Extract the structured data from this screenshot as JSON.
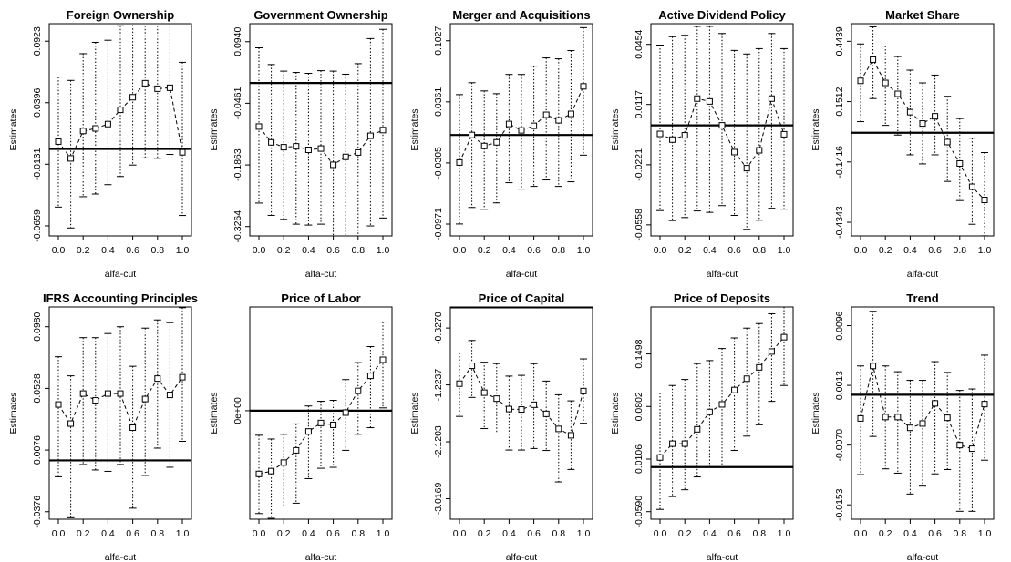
{
  "figure": {
    "xlabel": "alfa-cut",
    "ylabel": "Estimates",
    "colors": {
      "foreground": "#000000",
      "background": "#ffffff"
    }
  },
  "chart_data": [
    {
      "type": "line",
      "title": "Foreign Ownership",
      "xlabel": "alfa-cut",
      "ylabel": "Estimates",
      "xlim": [
        0,
        1
      ],
      "ylim": [
        -0.0745,
        0.1073
      ],
      "x_ticks": [
        "0.0",
        "0.2",
        "0.4",
        "0.6",
        "0.8",
        "1.0"
      ],
      "y_ticks": [
        "-0.0659",
        "-0.0131",
        "0.0396",
        "0.0923"
      ],
      "y_tick_values": [
        -0.0659,
        -0.0131,
        0.0396,
        0.0923
      ],
      "reference_line": 0.0,
      "x": [
        0,
        0.1,
        0.2,
        0.3,
        0.4,
        0.5,
        0.6,
        0.7,
        0.8,
        0.9,
        1.0
      ],
      "estimate": [
        0.0063,
        -0.0081,
        0.0154,
        0.0176,
        0.0213,
        0.0335,
        0.0443,
        0.0563,
        0.0516,
        0.0524,
        -0.0029
      ],
      "upper": [
        0.0616,
        0.0587,
        0.0816,
        0.0913,
        0.0931,
        0.1055,
        0.1088,
        0.111,
        0.111,
        0.1103,
        0.0742
      ],
      "lower": [
        -0.0498,
        -0.0677,
        -0.0409,
        -0.0386,
        -0.0306,
        -0.0236,
        -0.0138,
        -0.0077,
        -0.008,
        -0.0047,
        -0.057
      ]
    },
    {
      "type": "line",
      "title": "Government Ownership",
      "xlabel": "alfa-cut",
      "ylabel": "Estimates",
      "xlim": [
        0,
        1
      ],
      "ylim": [
        -0.3477,
        0.1349
      ],
      "x_ticks": [
        "0.0",
        "0.2",
        "0.4",
        "0.6",
        "0.8",
        "1.0"
      ],
      "y_ticks": [
        "-0.3264",
        "-0.1863",
        "-0.0461",
        "0.0940"
      ],
      "y_tick_values": [
        -0.3264,
        -0.1863,
        -0.0461,
        0.094
      ],
      "reference_line": 0.0,
      "x": [
        0,
        0.1,
        0.2,
        0.3,
        0.4,
        0.5,
        0.6,
        0.7,
        0.8,
        0.9,
        1.0
      ],
      "estimate": [
        -0.099,
        -0.135,
        -0.146,
        -0.144,
        -0.152,
        -0.149,
        -0.186,
        -0.168,
        -0.158,
        -0.12,
        -0.107
      ],
      "upper": [
        0.08,
        0.042,
        0.027,
        0.024,
        0.022,
        0.028,
        0.027,
        0.02,
        0.044,
        0.101,
        0.122
      ],
      "lower": [
        -0.273,
        -0.301,
        -0.31,
        -0.321,
        -0.323,
        -0.321,
        -0.361,
        -0.35,
        -0.348,
        -0.325,
        -0.307
      ]
    },
    {
      "type": "line",
      "title": "Merger and Acquisitions",
      "xlabel": "alfa-cut",
      "ylabel": "Estimates",
      "xlim": [
        0,
        1
      ],
      "ylim": [
        -0.11,
        0.1213
      ],
      "x_ticks": [
        "0.0",
        "0.2",
        "0.4",
        "0.6",
        "0.8",
        "1.0"
      ],
      "y_ticks": [
        "-0.0971",
        "-0.0305",
        "0.0361",
        "0.1027"
      ],
      "y_tick_values": [
        -0.0971,
        -0.0305,
        0.0361,
        0.1027
      ],
      "reference_line": 0.0,
      "x": [
        0,
        0.1,
        0.2,
        0.3,
        0.4,
        0.5,
        0.6,
        0.7,
        0.8,
        0.9,
        1.0
      ],
      "estimate": [
        -0.03,
        0.0,
        -0.012,
        -0.008,
        0.012,
        0.005,
        0.01,
        0.022,
        0.016,
        0.023,
        0.053
      ],
      "upper": [
        0.044,
        0.057,
        0.048,
        0.045,
        0.066,
        0.066,
        0.075,
        0.084,
        0.083,
        0.092,
        0.117
      ],
      "lower": [
        -0.097,
        -0.079,
        -0.081,
        -0.074,
        -0.052,
        -0.059,
        -0.056,
        -0.049,
        -0.056,
        -0.051,
        -0.022
      ]
    },
    {
      "type": "line",
      "title": "Active Dividend Policy",
      "xlabel": "alfa-cut",
      "ylabel": "Estimates",
      "xlim": [
        0,
        1
      ],
      "ylim": [
        -0.062,
        0.057
      ],
      "x_ticks": [
        "0.0",
        "0.2",
        "0.4",
        "0.6",
        "0.8",
        "1.0"
      ],
      "y_ticks": [
        "-0.0558",
        "-0.0221",
        "0.0117",
        "0.0454"
      ],
      "y_tick_values": [
        -0.0558,
        -0.0221,
        0.0117,
        0.0454
      ],
      "reference_line": 0.0,
      "x": [
        0,
        0.1,
        0.2,
        0.3,
        0.4,
        0.5,
        0.6,
        0.7,
        0.8,
        0.9,
        1.0
      ],
      "estimate": [
        -0.0048,
        -0.008,
        -0.0056,
        0.015,
        0.0134,
        0.0,
        -0.015,
        -0.024,
        -0.014,
        0.015,
        -0.005
      ],
      "upper": [
        0.045,
        0.0497,
        0.0505,
        0.0555,
        0.0555,
        0.0515,
        0.042,
        0.04,
        0.043,
        0.0515,
        0.043
      ],
      "lower": [
        -0.0478,
        -0.0534,
        -0.0517,
        -0.048,
        -0.0488,
        -0.045,
        -0.0505,
        -0.0583,
        -0.0532,
        -0.0465,
        -0.047
      ]
    },
    {
      "type": "line",
      "title": "Market Share",
      "xlabel": "alfa-cut",
      "ylabel": "Estimates",
      "xlim": [
        0,
        1
      ],
      "ylim": [
        -0.5005,
        0.5294
      ],
      "x_ticks": [
        "0.0",
        "0.2",
        "0.4",
        "0.6",
        "0.8",
        "1.0"
      ],
      "y_ticks": [
        "-0.4343",
        "-0.1416",
        "0.1512",
        "0.4439"
      ],
      "y_tick_values": [
        -0.4343,
        -0.1416,
        0.1512,
        0.4439
      ],
      "reference_line": 0.0,
      "x": [
        0,
        0.1,
        0.2,
        0.3,
        0.4,
        0.5,
        0.6,
        0.7,
        0.8,
        0.9,
        1.0
      ],
      "estimate": [
        0.252,
        0.355,
        0.242,
        0.189,
        0.1,
        0.045,
        0.08,
        -0.045,
        -0.149,
        -0.262,
        -0.326
      ],
      "upper": [
        0.431,
        0.514,
        0.421,
        0.37,
        0.304,
        0.242,
        0.28,
        0.177,
        0.069,
        -0.026,
        -0.096
      ],
      "lower": [
        0.054,
        0.166,
        0.036,
        -0.011,
        -0.107,
        -0.151,
        -0.107,
        -0.236,
        -0.329,
        -0.444,
        -0.5
      ]
    },
    {
      "type": "line",
      "title": "IFRS Accounting Principles",
      "xlabel": "alfa-cut",
      "ylabel": "Estimates",
      "xlim": [
        0,
        1
      ],
      "ylim": [
        -0.0431,
        0.1125
      ],
      "x_ticks": [
        "0.0",
        "0.2",
        "0.4",
        "0.6",
        "0.8",
        "1.0"
      ],
      "y_ticks": [
        "-0.0376",
        "0.0076",
        "0.0528",
        "0.0980"
      ],
      "y_tick_values": [
        -0.0376,
        0.0076,
        0.0528,
        0.098
      ],
      "reference_line": 0.0,
      "x": [
        0,
        0.1,
        0.2,
        0.3,
        0.4,
        0.5,
        0.6,
        0.7,
        0.8,
        0.9,
        1.0
      ],
      "estimate": [
        0.041,
        0.027,
        0.049,
        0.044,
        0.049,
        0.049,
        0.024,
        0.045,
        0.06,
        0.048,
        0.061
      ],
      "upper": [
        0.076,
        0.062,
        0.09,
        0.09,
        0.093,
        0.098,
        0.069,
        0.097,
        0.103,
        0.101,
        0.112
      ],
      "lower": [
        -0.012,
        -0.042,
        -0.003,
        -0.007,
        -0.008,
        -0.003,
        -0.035,
        -0.011,
        0.009,
        -0.005,
        0.014
      ]
    },
    {
      "type": "line",
      "title": "Price of Labor",
      "xlabel": "alfa-cut",
      "ylabel": "Estimates",
      "xlim": [
        0,
        1
      ],
      "ylim": [
        -1.15,
        1.1
      ],
      "x_ticks": [
        "0.0",
        "0.2",
        "0.4",
        "0.6",
        "0.8",
        "1.0"
      ],
      "y_ticks": [
        "0e+00"
      ],
      "y_tick_values": [
        0
      ],
      "reference_line": 0.0,
      "x": [
        0,
        0.1,
        0.2,
        0.3,
        0.4,
        0.5,
        0.6,
        0.7,
        0.8,
        0.9,
        1.0
      ],
      "estimate": [
        -0.67,
        -0.64,
        -0.55,
        -0.42,
        -0.22,
        -0.13,
        -0.15,
        -0.02,
        0.21,
        0.37,
        0.54
      ],
      "upper": [
        -0.26,
        -0.3,
        -0.25,
        -0.14,
        0.05,
        0.1,
        0.11,
        0.33,
        0.51,
        0.68,
        0.94
      ],
      "lower": [
        -1.09,
        -1.14,
        -1.01,
        -0.98,
        -0.72,
        -0.61,
        -0.6,
        -0.42,
        -0.25,
        -0.18,
        0.03
      ]
    },
    {
      "type": "line",
      "title": "Price of Capital",
      "xlabel": "alfa-cut",
      "ylabel": "Estimates",
      "xlim": [
        0,
        1
      ],
      "ylim": [
        -3.34,
        0.005
      ],
      "x_ticks": [
        "0.0",
        "0.2",
        "0.4",
        "0.6",
        "0.8",
        "1.0"
      ],
      "y_ticks": [
        "-3.0169",
        "-2.1203",
        "-1.2237",
        "-0.3270"
      ],
      "y_tick_values": [
        -3.0169,
        -2.1203,
        -1.2237,
        -0.327
      ],
      "reference_line": 0.0,
      "x": [
        0,
        0.1,
        0.2,
        0.3,
        0.4,
        0.5,
        0.6,
        0.7,
        0.8,
        0.9,
        1.0
      ],
      "estimate": [
        -1.204,
        -0.922,
        -1.346,
        -1.44,
        -1.604,
        -1.611,
        -1.536,
        -1.68,
        -1.917,
        -2.018,
        -1.321
      ],
      "upper": [
        -0.72,
        -0.523,
        -0.866,
        -0.888,
        -1.085,
        -1.073,
        -0.889,
        -1.163,
        -1.379,
        -1.475,
        -0.814
      ],
      "lower": [
        -1.72,
        -1.421,
        -1.912,
        -1.998,
        -2.25,
        -2.25,
        -2.226,
        -2.257,
        -2.752,
        -2.556,
        -1.828
      ]
    },
    {
      "type": "line",
      "title": "Price of Deposits",
      "xlabel": "alfa-cut",
      "ylabel": "Estimates",
      "xlim": [
        0,
        1
      ],
      "ylim": [
        -0.069,
        0.212
      ],
      "x_ticks": [
        "0.0",
        "0.2",
        "0.4",
        "0.6",
        "0.8",
        "1.0"
      ],
      "y_ticks": [
        "-0.0590",
        "0.0106",
        "0.0802",
        "0.1498"
      ],
      "y_tick_values": [
        -0.059,
        0.0106,
        0.0802,
        0.1498
      ],
      "reference_line": 0.0,
      "x": [
        0,
        0.1,
        0.2,
        0.3,
        0.4,
        0.5,
        0.6,
        0.7,
        0.8,
        0.9,
        1.0
      ],
      "estimate": [
        0.0127,
        0.031,
        0.031,
        0.05,
        0.073,
        0.083,
        0.102,
        0.117,
        0.132,
        0.153,
        0.172
      ],
      "upper": [
        0.098,
        0.108,
        0.116,
        0.137,
        0.141,
        0.157,
        0.171,
        0.184,
        0.19,
        0.203,
        0.212
      ],
      "lower": [
        -0.056,
        -0.039,
        -0.03,
        -0.013,
        0.0,
        0.0,
        0.022,
        0.041,
        0.056,
        0.087,
        0.108
      ]
    },
    {
      "type": "line",
      "title": "Trend",
      "xlabel": "alfa-cut",
      "ylabel": "Estimates",
      "xlim": [
        0,
        1
      ],
      "ylim": [
        -0.0173,
        0.0122
      ],
      "x_ticks": [
        "0.0",
        "0.2",
        "0.4",
        "0.6",
        "0.8",
        "1.0"
      ],
      "y_ticks": [
        "-0.0153",
        "-0.0070",
        "0.0013",
        "0.0096"
      ],
      "y_tick_values": [
        -0.0153,
        -0.007,
        0.0013,
        0.0096
      ],
      "reference_line": 0.0,
      "x": [
        0,
        0.1,
        0.2,
        0.3,
        0.4,
        0.5,
        0.6,
        0.7,
        0.8,
        0.9,
        1.0
      ],
      "estimate": [
        -0.0033,
        0.004,
        -0.0031,
        -0.0031,
        -0.0046,
        -0.004,
        -0.0012,
        -0.0032,
        -0.007,
        -0.0075,
        -0.0013
      ],
      "upper": [
        0.004,
        0.0116,
        0.004,
        0.0032,
        0.002,
        0.002,
        0.0046,
        0.0031,
        0.0006,
        0.0008,
        0.0055
      ],
      "lower": [
        -0.0111,
        -0.0058,
        -0.0103,
        -0.0109,
        -0.0138,
        -0.0127,
        -0.011,
        -0.0104,
        -0.0162,
        -0.0162,
        -0.0091
      ]
    }
  ]
}
